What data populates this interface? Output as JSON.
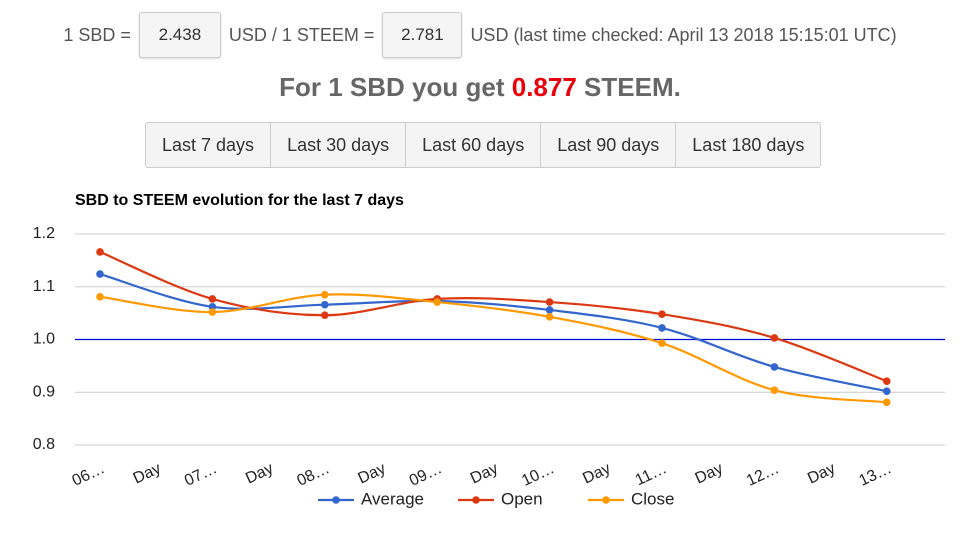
{
  "header": {
    "sbd_prefix": "1 SBD =",
    "sbd_usd": "2.438",
    "steem_prefix": "USD / 1 STEEM =",
    "steem_usd": "2.781",
    "checked": "USD (last time checked: April 13 2018 15:15:01 UTC)"
  },
  "headline": {
    "prefix": "For 1 SBD you get",
    "value": "0.877",
    "suffix": "STEEM."
  },
  "buttons": [
    "Last 7 days",
    "Last 30 days",
    "Last 60 days",
    "Last 90 days",
    "Last 180 days"
  ],
  "chart_data": {
    "type": "line",
    "title": "SBD to STEEM evolution for the last 7 days",
    "categories": [
      "06…",
      "07…",
      "08…",
      "09…",
      "10…",
      "11…",
      "12…",
      "13…"
    ],
    "between_labels": [
      "Day",
      "Day",
      "Day",
      "Day",
      "Day",
      "Day",
      "Day"
    ],
    "series": [
      {
        "name": "Average",
        "color": "#3366cc",
        "values": [
          1.124,
          1.062,
          1.066,
          1.073,
          1.056,
          1.022,
          0.948,
          0.902
        ]
      },
      {
        "name": "Open",
        "color": "#dc3912",
        "values": [
          1.166,
          1.077,
          1.046,
          1.077,
          1.071,
          1.048,
          1.003,
          0.921
        ]
      },
      {
        "name": "Close",
        "color": "#ff9900",
        "values": [
          1.081,
          1.052,
          1.085,
          1.071,
          1.043,
          0.993,
          0.904,
          0.881
        ]
      }
    ],
    "ylim": [
      0.8,
      1.2
    ],
    "yticks": [
      0.8,
      0.9,
      {
        "value": 1,
        "label": "1.0"
      },
      1.1,
      1.2
    ],
    "reference_line": {
      "value": 1,
      "color": "#0000cc"
    },
    "grid": true,
    "smooth": true,
    "legend": "bottom"
  }
}
